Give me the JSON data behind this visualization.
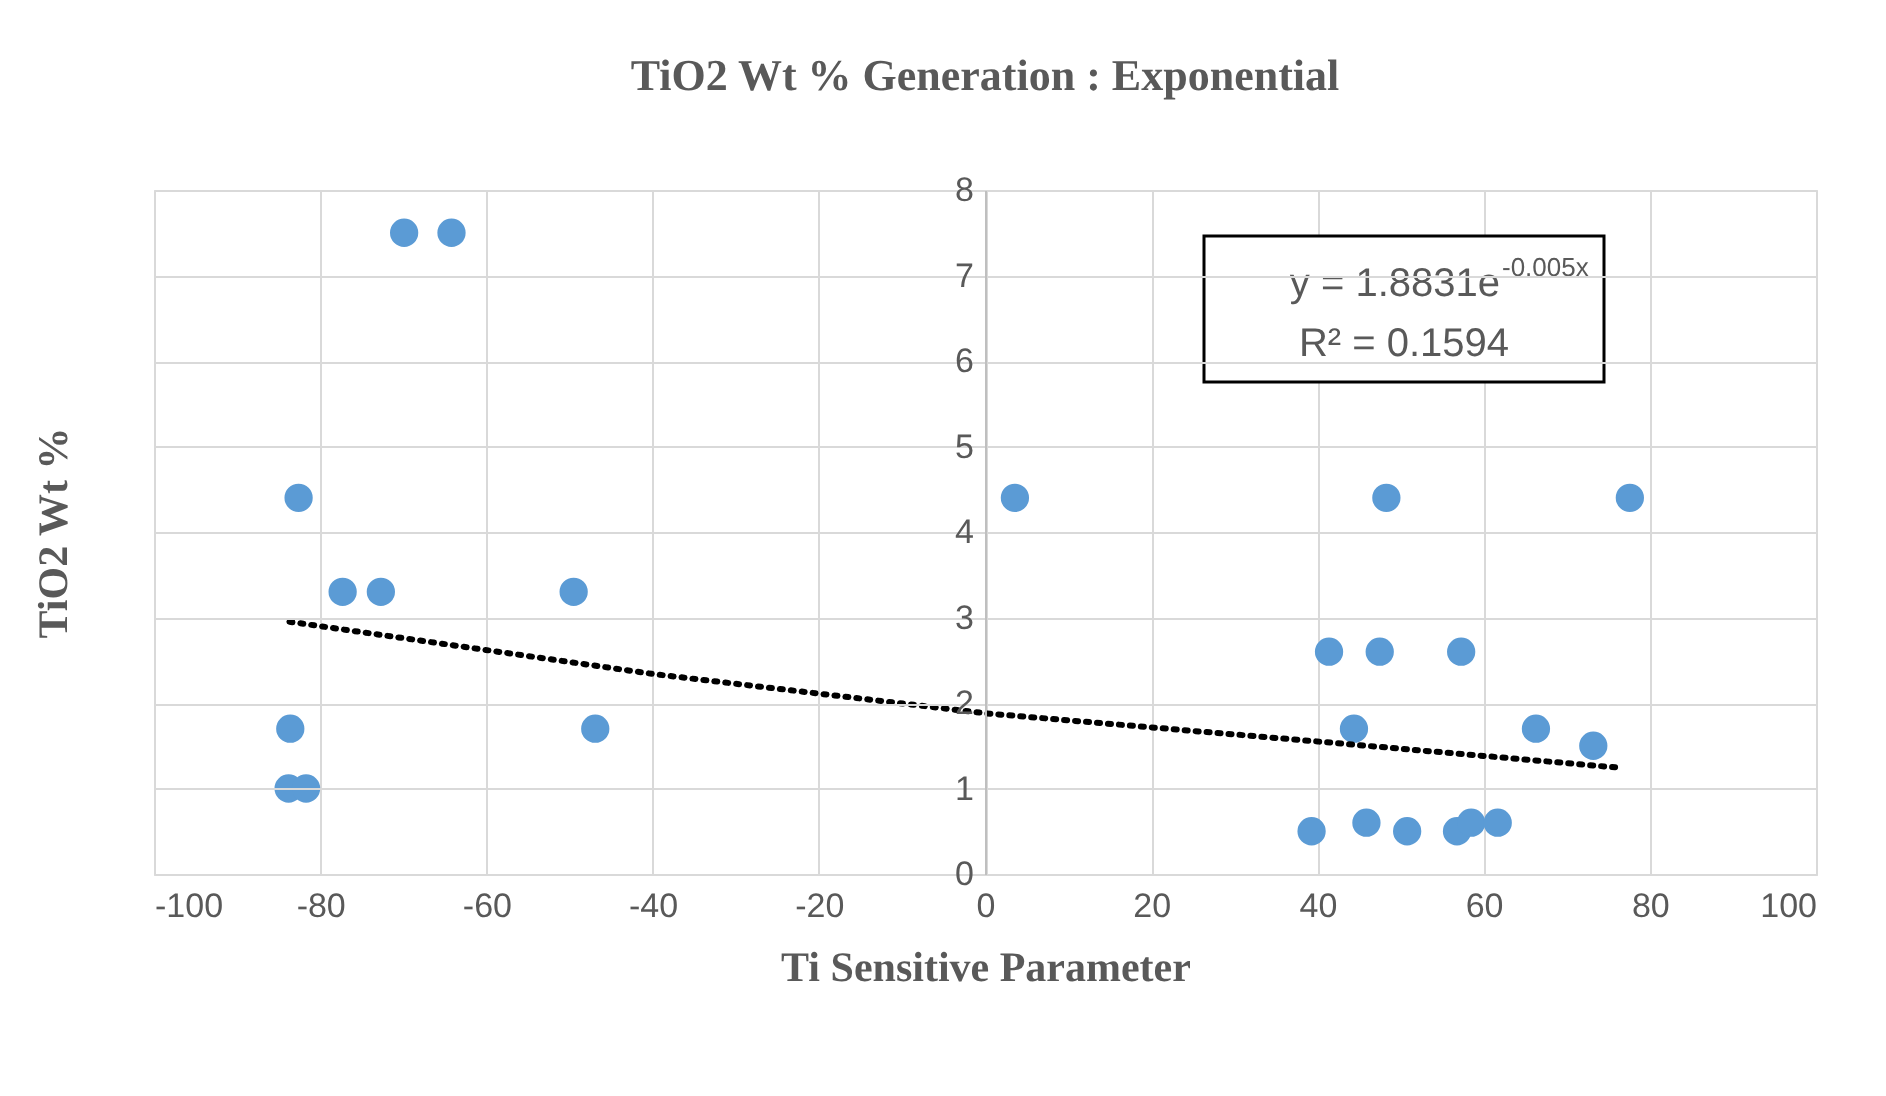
{
  "chart_data": {
    "type": "scatter",
    "title": "TiO2 Wt % Generation : Exponential",
    "xlabel": "Ti Sensitive Parameter",
    "ylabel": "TiO2 Wt %",
    "xlim": [
      -100,
      100
    ],
    "xticks": [
      -100,
      -80,
      -60,
      -40,
      -20,
      0,
      20,
      40,
      60,
      80,
      100
    ],
    "ylim": [
      0,
      8
    ],
    "yticks": [
      0,
      1,
      2,
      3,
      4,
      5,
      6,
      7,
      8
    ],
    "grid": true,
    "marker": "circle",
    "annotations": [
      "y = 1.8831e$^{-0.005x}$",
      "R² = 0.1594"
    ],
    "series": [
      {
        "color": "#5b9bd5",
        "x": [
          -69.9,
          -64.2,
          -82.6,
          -77.3,
          -72.7,
          -49.5,
          -83.6,
          -46.9,
          -83.8,
          -81.7,
          3.6,
          48.3,
          77.6,
          41.4,
          47.5,
          57.3,
          44.4,
          66.3,
          73.2,
          39.3,
          45.9,
          50.8,
          56.8,
          58.5,
          61.7
        ],
        "values": [
          7.5,
          7.5,
          4.4,
          3.3,
          3.3,
          3.3,
          1.7,
          1.7,
          1.0,
          1.0,
          4.4,
          4.4,
          4.4,
          2.6,
          2.6,
          2.6,
          1.7,
          1.7,
          1.5,
          0.5,
          0.6,
          0.5,
          0.5,
          0.6,
          0.6
        ]
      },
      {
        "type": "line",
        "color": "#000000",
        "line_style": "dotted",
        "marker": "none",
        "x": [
          -83.7,
          -40,
          0,
          40,
          76.7
        ],
        "values": [
          2.95,
          2.34,
          1.88,
          1.55,
          1.24
        ]
      }
    ]
  }
}
